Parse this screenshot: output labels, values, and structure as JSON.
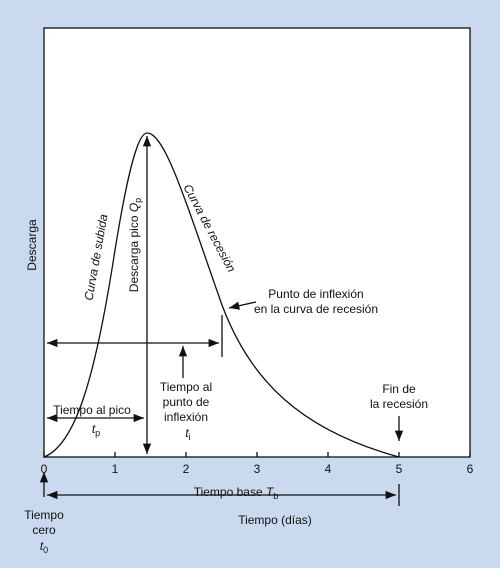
{
  "y_axis_label": "Descarga",
  "x_axis": {
    "label": "Tiempo (días)",
    "ticks": [
      0,
      1,
      2,
      3,
      4,
      5,
      6
    ]
  },
  "curve_labels": {
    "rising": "Curva de subida",
    "recession": "Curva de recesión"
  },
  "peak_discharge": {
    "text": "Descarga pico ",
    "symbol": "Q",
    "subscript": "p"
  },
  "inflection_point": [
    "Punto de inflexión",
    "en la curva de recesión"
  ],
  "time_to_inflection": {
    "lines": [
      "Tiempo al",
      "punto de",
      "inflexión"
    ],
    "symbol": "t",
    "subscript": "i"
  },
  "time_to_peak": {
    "text": "Tiempo al pico",
    "symbol": "t",
    "subscript": "p"
  },
  "end_of_recession": [
    "Fin de",
    "la recesión"
  ],
  "base_time": {
    "text": "Tiempo base ",
    "symbol": "T",
    "subscript": "b"
  },
  "time_zero": {
    "lines": [
      "Tiempo",
      "cero"
    ],
    "symbol": "t",
    "subscript": "0"
  }
}
